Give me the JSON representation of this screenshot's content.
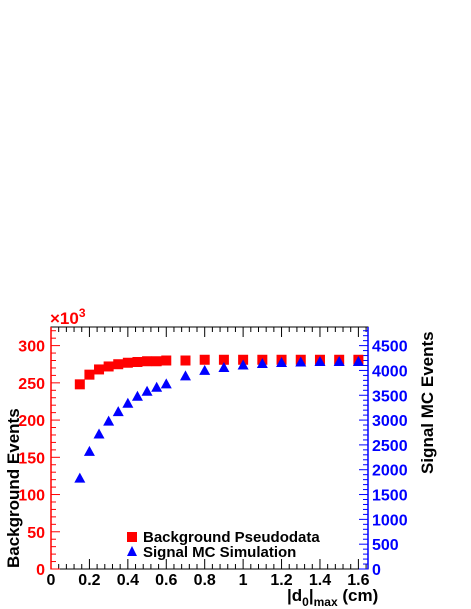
{
  "chart_data": {
    "type": "scatter",
    "x_axis": {
      "label_main": "|d",
      "label_sub0": "0",
      "label_bar": "|",
      "label_sub1": "max",
      "label_unit": " (cm)",
      "range": [
        0,
        1.65
      ],
      "ticks": [
        0,
        0.2,
        0.4,
        0.6,
        0.8,
        1,
        1.2,
        1.4,
        1.6
      ],
      "tick_labels": [
        "0",
        "0.2",
        "0.4",
        "0.6",
        "0.8",
        "1",
        "1.2",
        "1.4",
        "1.6"
      ]
    },
    "y_left": {
      "label": "Background Events",
      "multiplier_label": "×10",
      "multiplier_exp": "3",
      "range": [
        0,
        325
      ],
      "ticks": [
        0,
        50,
        100,
        150,
        200,
        250,
        300
      ],
      "tick_labels": [
        "0",
        "50",
        "100",
        "150",
        "200",
        "250",
        "300"
      ],
      "color": "#ff0000"
    },
    "y_right": {
      "label": "Signal MC Events",
      "range": [
        0,
        4875
      ],
      "ticks": [
        0,
        500,
        1000,
        1500,
        2000,
        2500,
        3000,
        3500,
        4000,
        4500
      ],
      "tick_labels": [
        "0",
        "500",
        "1000",
        "1500",
        "2000",
        "2500",
        "3000",
        "3500",
        "4000",
        "4500"
      ],
      "color": "#0000ff"
    },
    "series": [
      {
        "name": "Background Pseudodata",
        "axis": "left",
        "marker": "square",
        "color": "#ff0000",
        "x": [
          0.15,
          0.2,
          0.25,
          0.3,
          0.35,
          0.4,
          0.45,
          0.5,
          0.55,
          0.6,
          0.7,
          0.8,
          0.9,
          1.0,
          1.1,
          1.2,
          1.3,
          1.4,
          1.5,
          1.6
        ],
        "y": [
          248,
          261,
          268,
          272,
          275,
          277,
          278,
          279,
          279,
          280,
          280,
          281,
          281,
          281,
          281,
          281,
          281,
          281,
          281,
          281
        ]
      },
      {
        "name": "Signal MC Simulation",
        "axis": "right",
        "marker": "triangle",
        "color": "#0000ff",
        "x": [
          0.15,
          0.2,
          0.25,
          0.3,
          0.35,
          0.4,
          0.45,
          0.5,
          0.55,
          0.6,
          0.7,
          0.8,
          0.9,
          1.0,
          1.1,
          1.2,
          1.3,
          1.4,
          1.5,
          1.6
        ],
        "y": [
          1820,
          2360,
          2710,
          2970,
          3160,
          3330,
          3470,
          3570,
          3650,
          3720,
          3880,
          3990,
          4050,
          4100,
          4130,
          4150,
          4160,
          4170,
          4170,
          4170
        ]
      }
    ],
    "legend_position": "bottom-right"
  }
}
